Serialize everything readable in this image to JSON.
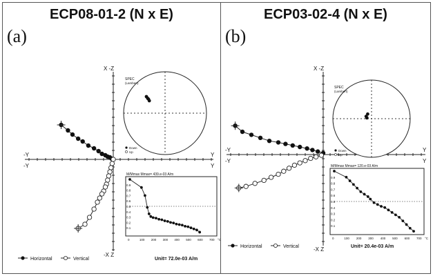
{
  "chart_data": [
    {
      "type": "scatter",
      "title": "ECP08-01-2 (N x E)",
      "panel_label": "(a)",
      "axis_labels": {
        "top": "X -Z",
        "bottom": "-X Z",
        "left_upper": "-Y",
        "left_lower": "-Y",
        "right_upper": "Y",
        "right_lower": "Y"
      },
      "legend": {
        "horizontal": "Horizontal",
        "vertical": "Vertical"
      },
      "unit": "Unit=  72.0e-03 A/m",
      "stereonet": {
        "label": "SPEC",
        "sublabel": "(Lambert)",
        "legend_down": "Down",
        "legend_up": "Up",
        "points": [
          [
            0.38,
            0.3
          ],
          [
            0.42,
            0.36
          ],
          [
            0.45,
            0.4
          ],
          [
            0.4,
            0.34
          ]
        ]
      },
      "zijderveld": {
        "horizontal": [
          [
            -0.92,
            0.5
          ],
          [
            -0.8,
            0.42
          ],
          [
            -0.72,
            0.36
          ],
          [
            -0.62,
            0.3
          ],
          [
            -0.54,
            0.26
          ],
          [
            -0.44,
            0.2
          ],
          [
            -0.34,
            0.16
          ],
          [
            -0.26,
            0.12
          ],
          [
            -0.2,
            0.08
          ],
          [
            -0.14,
            0.06
          ],
          [
            -0.1,
            0.04
          ],
          [
            -0.06,
            0.03
          ],
          [
            -0.03,
            0.01
          ],
          [
            0.0,
            0.0
          ]
        ],
        "vertical": [
          [
            0.0,
            0.0
          ],
          [
            -0.02,
            -0.06
          ],
          [
            -0.04,
            -0.12
          ],
          [
            -0.06,
            -0.18
          ],
          [
            -0.08,
            -0.24
          ],
          [
            -0.1,
            -0.3
          ],
          [
            -0.12,
            -0.36
          ],
          [
            -0.14,
            -0.4
          ],
          [
            -0.17,
            -0.46
          ],
          [
            -0.2,
            -0.5
          ],
          [
            -0.24,
            -0.56
          ],
          [
            -0.28,
            -0.62
          ],
          [
            -0.34,
            -0.72
          ],
          [
            -0.42,
            -0.84
          ],
          [
            -0.5,
            -0.94
          ],
          [
            -0.62,
            -1.0
          ]
        ]
      },
      "intensity": {
        "title": "M/Mmax   Mmax= 439.e-03  A/m",
        "unit_label": "°C",
        "xlim": [
          0,
          700
        ],
        "ylim": [
          0,
          1
        ],
        "x_ticks": [
          0,
          100,
          200,
          300,
          400,
          500,
          600,
          700
        ],
        "y_ticks": [
          0.1,
          0.2,
          0.3,
          0.4,
          0.5,
          0.6,
          0.7,
          0.8,
          0.9
        ],
        "dashed_line_y": 0.5,
        "x": [
          0,
          100,
          130,
          150,
          165,
          180,
          200,
          225,
          250,
          275,
          300,
          325,
          350,
          375,
          400,
          425,
          450,
          475,
          500,
          525,
          550,
          575,
          600
        ],
        "y": [
          1.0,
          0.85,
          0.7,
          0.48,
          0.36,
          0.31,
          0.29,
          0.28,
          0.26,
          0.25,
          0.23,
          0.22,
          0.2,
          0.19,
          0.17,
          0.16,
          0.15,
          0.13,
          0.12,
          0.1,
          0.08,
          0.06,
          0.02
        ]
      }
    },
    {
      "type": "scatter",
      "title": "ECP03-02-4 (N x E)",
      "panel_label": "(b)",
      "axis_labels": {
        "top": "X -Z",
        "bottom": "-X Z",
        "left_upper": "-Y",
        "left_lower": "-Y",
        "right_upper": "Y",
        "right_lower": "Y"
      },
      "legend": {
        "horizontal": "Horizontal",
        "vertical": "Vertical"
      },
      "unit": "Unit=  20.4e-03 A/m",
      "stereonet": {
        "label": "SPEC",
        "sublabel": "(Lambert)",
        "legend_down": "Down",
        "legend_up": "Up",
        "points": [
          [
            0.1,
            0.12
          ],
          [
            0.14,
            0.06
          ],
          [
            0.12,
            0.02
          ]
        ]
      },
      "zijderveld": {
        "horizontal": [
          [
            -0.98,
            0.38
          ],
          [
            -0.9,
            0.3
          ],
          [
            -0.8,
            0.26
          ],
          [
            -0.7,
            0.22
          ],
          [
            -0.6,
            0.18
          ],
          [
            -0.5,
            0.16
          ],
          [
            -0.42,
            0.14
          ],
          [
            -0.34,
            0.12
          ],
          [
            -0.26,
            0.1
          ],
          [
            -0.18,
            0.08
          ],
          [
            -0.12,
            0.06
          ],
          [
            -0.06,
            0.04
          ],
          [
            0.0,
            0.02
          ]
        ],
        "vertical": [
          [
            -0.94,
            -0.44
          ],
          [
            -0.86,
            -0.42
          ],
          [
            -0.76,
            -0.38
          ],
          [
            -0.66,
            -0.34
          ],
          [
            -0.58,
            -0.3
          ],
          [
            -0.5,
            -0.26
          ],
          [
            -0.44,
            -0.22
          ],
          [
            -0.38,
            -0.18
          ],
          [
            -0.32,
            -0.14
          ],
          [
            -0.26,
            -0.11
          ],
          [
            -0.2,
            -0.08
          ],
          [
            -0.14,
            -0.05
          ],
          [
            -0.08,
            -0.03
          ],
          [
            -0.02,
            -0.01
          ]
        ]
      },
      "intensity": {
        "title": "M/Mmax   Mmax= 120.e-03  A/m",
        "unit_label": "°C",
        "xlim": [
          0,
          700
        ],
        "ylim": [
          0,
          1
        ],
        "x_ticks": [
          0,
          100,
          200,
          300,
          400,
          500,
          600,
          700
        ],
        "y_ticks": [
          0.1,
          0.2,
          0.3,
          0.4,
          0.5,
          0.6,
          0.7,
          0.8,
          0.9
        ],
        "dashed_line_y": 0.5,
        "x": [
          0,
          100,
          130,
          160,
          190,
          220,
          250,
          280,
          300,
          330,
          360,
          390,
          420,
          450,
          480,
          510,
          540,
          570,
          600,
          630,
          660
        ],
        "y": [
          1.0,
          0.9,
          0.84,
          0.78,
          0.72,
          0.66,
          0.62,
          0.58,
          0.54,
          0.48,
          0.45,
          0.42,
          0.4,
          0.36,
          0.32,
          0.28,
          0.24,
          0.18,
          0.12,
          0.06,
          0.01
        ]
      }
    }
  ]
}
